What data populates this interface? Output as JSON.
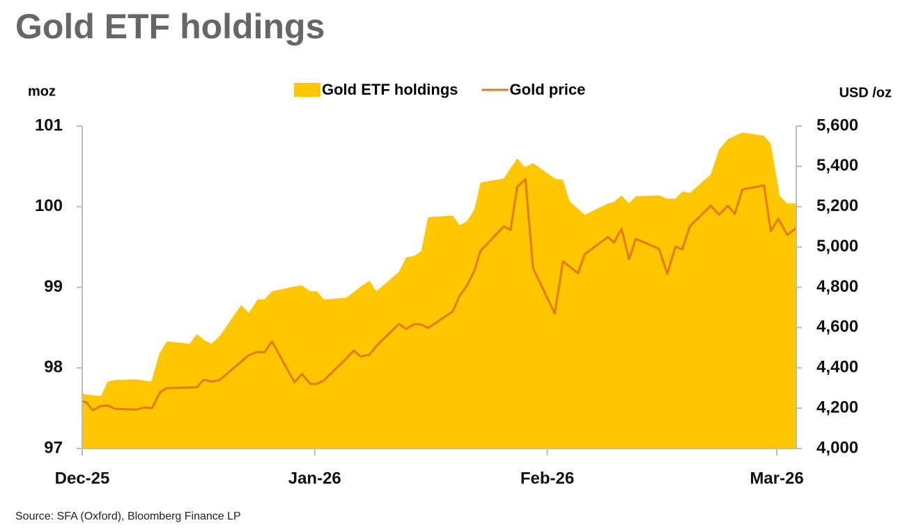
{
  "chart_data": {
    "type": "area-line",
    "title": "Gold ETF holdings",
    "y_label": "moz",
    "y2_label": "USD /oz",
    "source": "Source: SFA (Oxford), Bloomberg Finance LP",
    "xlim": [
      0,
      95.2
    ],
    "xticks": [
      {
        "value": 0,
        "label": "Dec-25"
      },
      {
        "value": 31,
        "label": "Jan-26"
      },
      {
        "value": 62,
        "label": "Feb-26"
      },
      {
        "value": 92.6,
        "label": "Mar-26"
      }
    ],
    "ylim": [
      97,
      101
    ],
    "yticks": [
      97,
      98,
      99,
      100,
      101
    ],
    "y2lim": [
      4000,
      5600
    ],
    "y2ticks": [
      {
        "value": 4000,
        "label": "4,000"
      },
      {
        "value": 4200,
        "label": "4,200"
      },
      {
        "value": 4400,
        "label": "4,400"
      },
      {
        "value": 4600,
        "label": "4,600"
      },
      {
        "value": 4800,
        "label": "4,800"
      },
      {
        "value": 5000,
        "label": "5,000"
      },
      {
        "value": 5200,
        "label": "5,200"
      },
      {
        "value": 5400,
        "label": "5,400"
      },
      {
        "value": 5600,
        "label": "5,600"
      }
    ],
    "series": [
      {
        "name": "Gold ETF holdings",
        "type": "area",
        "color": "#FFC700",
        "x": [
          0,
          0.6,
          2.5,
          3.4,
          4.4,
          7.1,
          9.2,
          10.3,
          11.3,
          14.3,
          15.3,
          16.2,
          17.2,
          18.3,
          21.2,
          22.2,
          23.4,
          24.3,
          25.3,
          28.8,
          29.3,
          30.4,
          31.3,
          32.2,
          35.2,
          37.3,
          38.3,
          39.2,
          42.2,
          43.2,
          44.3,
          45.2,
          46.1,
          49.4,
          50.3,
          51.3,
          52.3,
          53.1,
          56.2,
          58,
          59,
          60.1,
          63,
          64.1,
          65,
          65.9,
          67,
          70.1,
          70.9,
          71.9,
          72.9,
          73.8,
          76.9,
          78,
          79.1,
          80,
          81,
          83.8,
          84.9,
          86.1,
          88,
          90.9,
          91.8,
          93,
          94,
          95.2
        ],
        "values": [
          97.68,
          97.67,
          97.65,
          97.83,
          97.85,
          97.86,
          97.83,
          98.18,
          98.33,
          98.3,
          98.42,
          98.35,
          98.3,
          98.39,
          98.78,
          98.68,
          98.85,
          98.85,
          98.95,
          99.02,
          99.02,
          98.95,
          98.95,
          98.85,
          98.87,
          99.02,
          99.08,
          98.95,
          99.19,
          99.37,
          99.39,
          99.45,
          99.87,
          99.89,
          99.77,
          99.82,
          99.97,
          100.3,
          100.35,
          100.6,
          100.49,
          100.54,
          100.35,
          100.33,
          100.06,
          99.99,
          99.9,
          100.04,
          100.06,
          100.14,
          100.04,
          100.13,
          100.14,
          100.1,
          100.1,
          100.19,
          100.17,
          100.4,
          100.71,
          100.84,
          100.92,
          100.88,
          100.78,
          100.13,
          100.04,
          100.04
        ]
      },
      {
        "name": "Gold price",
        "type": "line",
        "axis": "y2",
        "color": "#E8770F",
        "x": [
          0,
          0.6,
          1.4,
          2.5,
          3.4,
          4.4,
          7.1,
          8.4,
          9.3,
          10.4,
          11.3,
          15.3,
          16.2,
          17.2,
          18.3,
          22.2,
          23.4,
          24.3,
          25.3,
          28.3,
          29.3,
          30.4,
          31.3,
          32.2,
          35.2,
          36.2,
          37.1,
          38.3,
          39.2,
          42.2,
          43.2,
          44.3,
          45.2,
          46.1,
          49.4,
          50.3,
          51.3,
          52.3,
          53.1,
          56.2,
          57.1,
          58,
          59.1,
          60.1,
          63,
          64.1,
          65,
          66.1,
          67,
          70.1,
          70.9,
          71.9,
          72.9,
          73.8,
          76.9,
          78,
          79.1,
          80,
          81,
          83.8,
          84.9,
          86.1,
          87,
          88,
          90.9,
          91.8,
          92.8,
          94,
          95.2
        ],
        "values": [
          4235,
          4228,
          4190,
          4211,
          4214,
          4197,
          4193,
          4204,
          4200,
          4280,
          4300,
          4304,
          4342,
          4332,
          4339,
          4463,
          4480,
          4477,
          4532,
          4328,
          4370,
          4321,
          4321,
          4338,
          4446,
          4487,
          4456,
          4466,
          4508,
          4618,
          4594,
          4618,
          4615,
          4598,
          4680,
          4756,
          4808,
          4884,
          4981,
          5102,
          5084,
          5299,
          5337,
          4895,
          4670,
          4929,
          4902,
          4870,
          4964,
          5050,
          5022,
          5091,
          4939,
          5040,
          4991,
          4867,
          5002,
          4988,
          5102,
          5205,
          5160,
          5205,
          5164,
          5285,
          5306,
          5078,
          5140,
          5060,
          5095
        ]
      }
    ]
  }
}
